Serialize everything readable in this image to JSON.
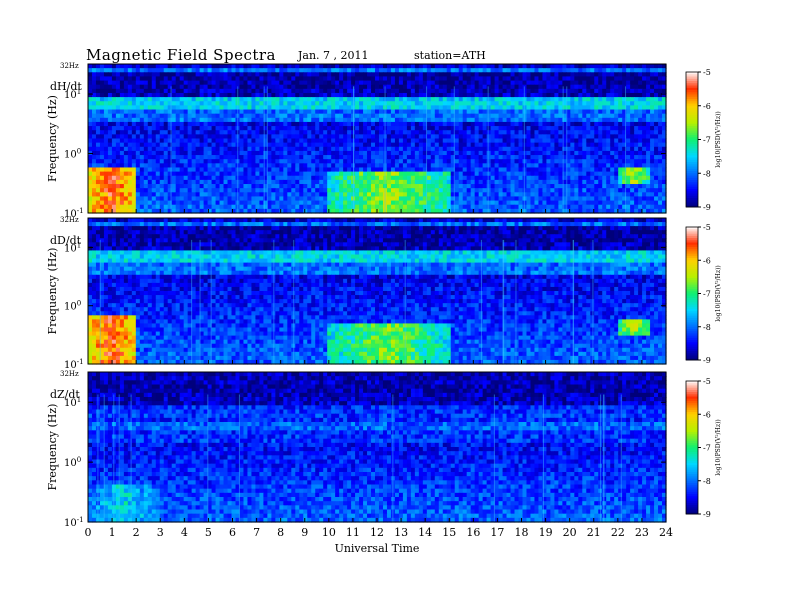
{
  "header": {
    "title": "Magnetic Field Spectra",
    "date": "Jan. 7 , 2011",
    "station": "station=ATH"
  },
  "chart_data": {
    "type": "heatmap",
    "x_axis": {
      "label": "Universal Time",
      "range": [
        0,
        24
      ],
      "ticks": [
        "0",
        "1",
        "2",
        "3",
        "4",
        "5",
        "6",
        "7",
        "8",
        "9",
        "10",
        "11",
        "12",
        "13",
        "14",
        "15",
        "16",
        "17",
        "18",
        "19",
        "20",
        "21",
        "22",
        "23",
        "24"
      ]
    },
    "y_axis": {
      "label": "Frequency (Hz)",
      "scale": "log",
      "range_hz": [
        0.1,
        32
      ],
      "ticks": [
        {
          "value": 0.1,
          "base": "10",
          "exp": "-1"
        },
        {
          "value": 1,
          "base": "10",
          "exp": "0"
        },
        {
          "value": 10,
          "base": "10",
          "exp": "1"
        }
      ],
      "top_label": "32Hz"
    },
    "colorbar": {
      "label": "log10(PSD(V²/Hz))",
      "range": [
        -9,
        -5
      ],
      "ticks": [
        "-5",
        "-6",
        "-7",
        "-8",
        "-9"
      ],
      "colormap": [
        "#00007a",
        "#0000ff",
        "#0070ff",
        "#00d8ff",
        "#10f070",
        "#b8f000",
        "#ffd000",
        "#ff3000",
        "#ffffff"
      ]
    },
    "panels": [
      {
        "id": "dH",
        "label": "dH/dt",
        "events": [
          {
            "t": [
              0,
              2
            ],
            "f": [
              0.1,
              0.6
            ],
            "level": -5.5
          },
          {
            "t": [
              10,
              15
            ],
            "f": [
              0.1,
              0.5
            ],
            "level": -6.6
          },
          {
            "t": [
              22,
              23.3
            ],
            "f": [
              0.3,
              0.6
            ],
            "level": -6.5
          }
        ]
      },
      {
        "id": "dD",
        "label": "dD/dt",
        "events": [
          {
            "t": [
              0,
              2
            ],
            "f": [
              0.1,
              0.7
            ],
            "level": -5.5
          },
          {
            "t": [
              10,
              15
            ],
            "f": [
              0.1,
              0.5
            ],
            "level": -6.7
          },
          {
            "t": [
              22,
              23.3
            ],
            "f": [
              0.3,
              0.6
            ],
            "level": -6.5
          }
        ]
      },
      {
        "id": "dZ",
        "label": "dZ/dt",
        "events": [
          {
            "t": [
              0,
              3
            ],
            "f": [
              0.1,
              0.4
            ],
            "level": -7.4
          }
        ]
      }
    ]
  }
}
